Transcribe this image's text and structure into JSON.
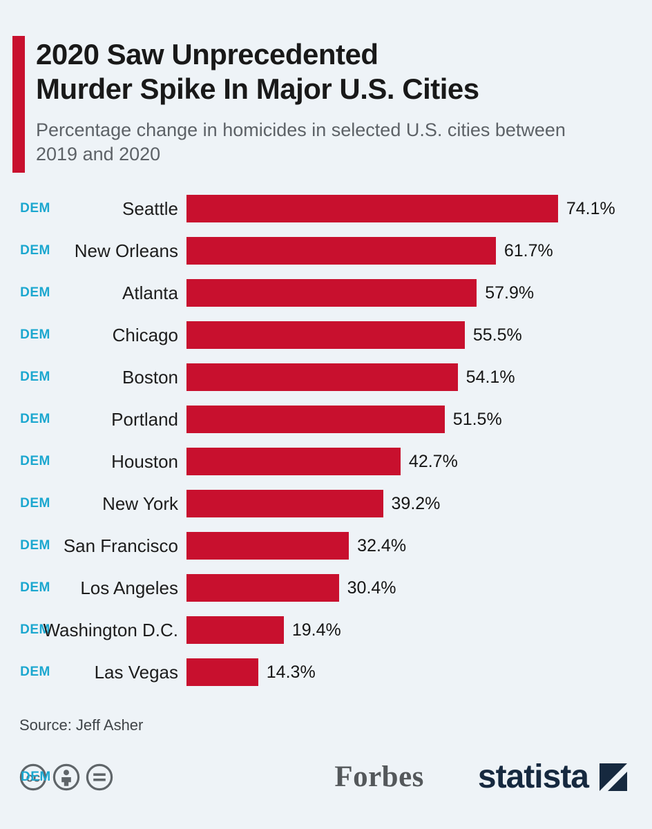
{
  "colors": {
    "background": "#eef3f7",
    "accent_bar": "#c8102e",
    "bar": "#c8102e",
    "tag": "#1ba7cf",
    "title": "#191919",
    "subtitle": "#5d6267",
    "statista_navy": "#16293f",
    "forbes_gray": "#54585b"
  },
  "header": {
    "title_line1": "2020 Saw Unprecedented",
    "title_line2": "Murder Spike In Major U.S. Cities",
    "subtitle": "Percentage change in homicides in selected U.S. cities between 2019 and 2020"
  },
  "chart_data": {
    "type": "bar",
    "orientation": "horizontal",
    "title": "2020 Saw Unprecedented Murder Spike In Major U.S. Cities",
    "subtitle": "Percentage change in homicides in selected U.S. cities between 2019 and 2020",
    "categories": [
      "Seattle",
      "New Orleans",
      "Atlanta",
      "Chicago",
      "Boston",
      "Portland",
      "Houston",
      "New York",
      "San Francisco",
      "Los Angeles",
      "Washington D.C.",
      "Las Vegas"
    ],
    "values": [
      74.1,
      61.7,
      57.9,
      55.5,
      54.1,
      51.5,
      42.7,
      39.2,
      32.4,
      30.4,
      19.4,
      14.3
    ],
    "value_labels": [
      "74.1%",
      "61.7%",
      "57.9%",
      "55.5%",
      "54.1%",
      "51.5%",
      "42.7%",
      "39.2%",
      "32.4%",
      "30.4%",
      "19.4%",
      "14.3%"
    ],
    "row_tag": "DEM",
    "xlabel": "",
    "ylabel": "",
    "axis_max": 89,
    "grid": false,
    "legend": false,
    "bar_color": "#c8102e"
  },
  "footer": {
    "source": "Source: Jeff Asher",
    "dem_overlay": "DEM",
    "forbes": "Forbes",
    "statista": "statista",
    "icons": [
      "cc-icon",
      "attribution-icon",
      "equals-icon"
    ]
  }
}
